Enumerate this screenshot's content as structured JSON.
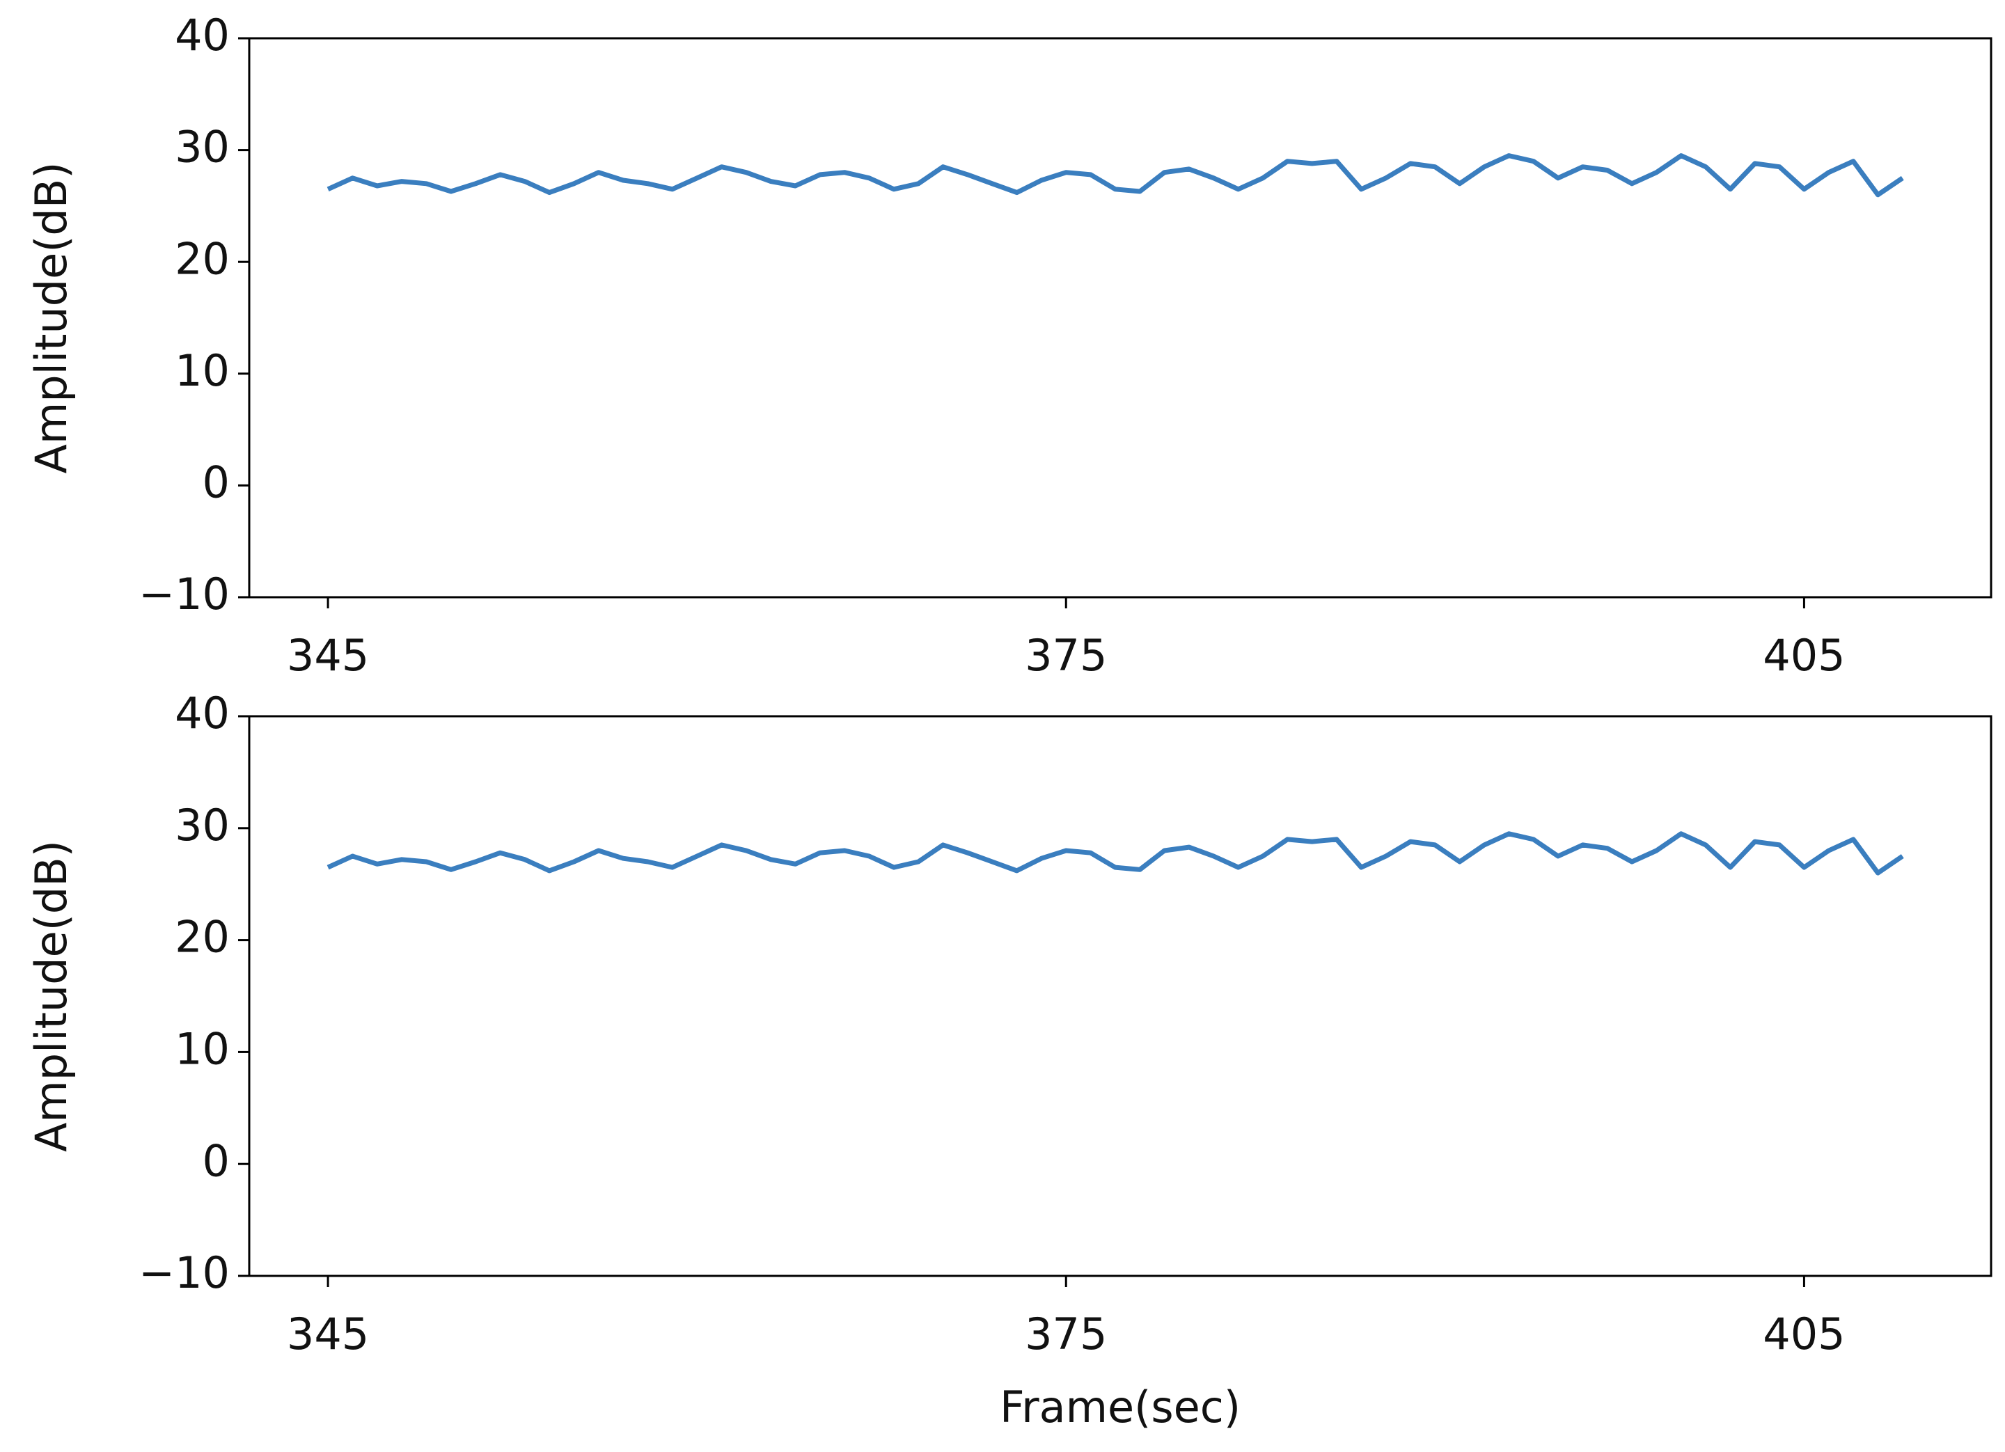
{
  "chart_data": [
    {
      "type": "line",
      "ylabel": "Amplitude(dB)",
      "x": [
        345,
        346,
        347,
        348,
        349,
        350,
        351,
        352,
        353,
        354,
        355,
        356,
        357,
        358,
        359,
        360,
        361,
        362,
        363,
        364,
        365,
        366,
        367,
        368,
        369,
        370,
        371,
        372,
        373,
        374,
        375,
        376,
        377,
        378,
        379,
        380,
        381,
        382,
        383,
        384,
        385,
        386,
        387,
        388,
        389,
        390,
        391,
        392,
        393,
        394,
        395,
        396,
        397,
        398,
        399,
        400,
        401,
        402,
        403,
        404,
        405,
        406,
        407,
        408,
        409
      ],
      "series": [
        {
          "color": "#3a7ebf",
          "values": [
            26.5,
            27.5,
            26.8,
            27.2,
            27.0,
            26.3,
            27.0,
            27.8,
            27.2,
            26.2,
            27.0,
            28.0,
            27.3,
            27.0,
            26.5,
            27.5,
            28.5,
            28.0,
            27.2,
            26.8,
            27.8,
            28.0,
            27.5,
            26.5,
            27.0,
            28.5,
            27.8,
            27.0,
            26.2,
            27.3,
            28.0,
            27.8,
            26.5,
            26.3,
            28.0,
            28.3,
            27.5,
            26.5,
            27.5,
            29.0,
            28.8,
            29.0,
            26.5,
            27.5,
            28.8,
            28.5,
            27.0,
            28.5,
            29.5,
            29.0,
            27.5,
            28.5,
            28.2,
            27.0,
            28.0,
            29.5,
            28.5,
            26.5,
            28.8,
            28.5,
            26.5,
            28.0,
            29.0,
            26.0,
            27.5
          ]
        }
      ],
      "xlim": [
        341.8,
        412.6
      ],
      "ylim": [
        -10,
        40
      ],
      "xticks": [
        345,
        375,
        405
      ],
      "yticks": [
        {
          "value": -10,
          "label": "−10"
        },
        0,
        10,
        20,
        30,
        40
      ]
    },
    {
      "type": "line",
      "ylabel": "Amplitude(dB)",
      "xlabel": "Frame(sec)",
      "x": [
        345,
        346,
        347,
        348,
        349,
        350,
        351,
        352,
        353,
        354,
        355,
        356,
        357,
        358,
        359,
        360,
        361,
        362,
        363,
        364,
        365,
        366,
        367,
        368,
        369,
        370,
        371,
        372,
        373,
        374,
        375,
        376,
        377,
        378,
        379,
        380,
        381,
        382,
        383,
        384,
        385,
        386,
        387,
        388,
        389,
        390,
        391,
        392,
        393,
        394,
        395,
        396,
        397,
        398,
        399,
        400,
        401,
        402,
        403,
        404,
        405,
        406,
        407,
        408,
        409
      ],
      "series": [
        {
          "color": "#3a7ebf",
          "values": [
            26.5,
            27.5,
            26.8,
            27.2,
            27.0,
            26.3,
            27.0,
            27.8,
            27.2,
            26.2,
            27.0,
            28.0,
            27.3,
            27.0,
            26.5,
            27.5,
            28.5,
            28.0,
            27.2,
            26.8,
            27.8,
            28.0,
            27.5,
            26.5,
            27.0,
            28.5,
            27.8,
            27.0,
            26.2,
            27.3,
            28.0,
            27.8,
            26.5,
            26.3,
            28.0,
            28.3,
            27.5,
            26.5,
            27.5,
            29.0,
            28.8,
            29.0,
            26.5,
            27.5,
            28.8,
            28.5,
            27.0,
            28.5,
            29.5,
            29.0,
            27.5,
            28.5,
            28.2,
            27.0,
            28.0,
            29.5,
            28.5,
            26.5,
            28.8,
            28.5,
            26.5,
            28.0,
            29.0,
            26.0,
            27.5
          ]
        }
      ],
      "xlim": [
        341.8,
        412.6
      ],
      "ylim": [
        -10,
        40
      ],
      "xticks": [
        345,
        375,
        405
      ],
      "yticks": [
        {
          "value": -10,
          "label": "−10"
        },
        0,
        10,
        20,
        30,
        40
      ]
    }
  ]
}
